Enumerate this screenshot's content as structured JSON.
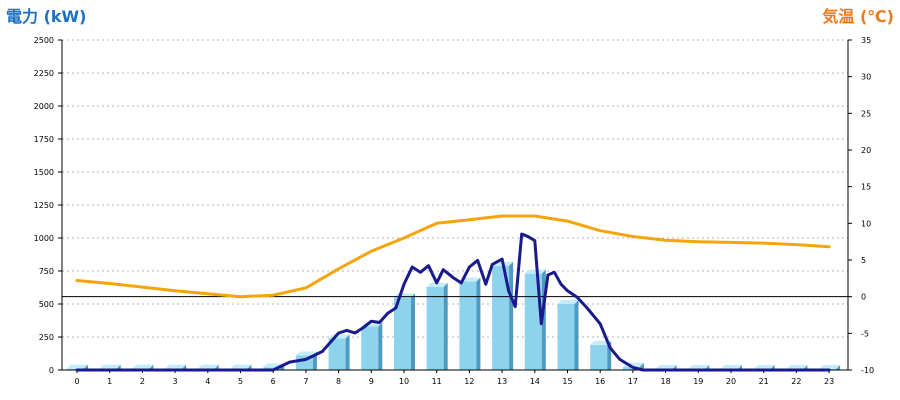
{
  "chart_data": {
    "type": "bar+line",
    "left_axis_title": "電力 (kW)",
    "right_axis_title": "気温 (℃)",
    "x_ticks": [
      "0",
      "1",
      "2",
      "3",
      "4",
      "5",
      "6",
      "7",
      "8",
      "9",
      "10",
      "11",
      "12",
      "13",
      "14",
      "15",
      "16",
      "17",
      "18",
      "19",
      "20",
      "21",
      "22",
      "23"
    ],
    "y_left_ticks": [
      "0",
      "250",
      "500",
      "750",
      "1000",
      "1250",
      "1500",
      "1750",
      "2000",
      "2250",
      "2500"
    ],
    "y_right_ticks": [
      "-10",
      "-5",
      "0",
      "5",
      "10",
      "15",
      "20",
      "25",
      "30",
      "35"
    ],
    "y_left_range": [
      0,
      2500
    ],
    "y_right_range": [
      -10,
      35
    ],
    "grid": "horizontal dotted",
    "bars": {
      "hours": [
        0,
        1,
        2,
        3,
        4,
        5,
        6,
        7,
        8,
        9,
        10,
        11,
        12,
        13,
        14,
        15,
        16,
        17,
        18,
        19,
        20,
        21,
        22,
        23
      ],
      "values": [
        10,
        10,
        10,
        10,
        10,
        10,
        20,
        110,
        240,
        330,
        550,
        630,
        670,
        790,
        730,
        500,
        190,
        25,
        5,
        5,
        5,
        5,
        5,
        5
      ]
    },
    "power_line": {
      "points": [
        [
          0,
          0
        ],
        [
          6,
          0
        ],
        [
          6.5,
          60
        ],
        [
          7,
          80
        ],
        [
          7.5,
          140
        ],
        [
          8,
          280
        ],
        [
          8.25,
          300
        ],
        [
          8.5,
          280
        ],
        [
          8.75,
          320
        ],
        [
          9,
          370
        ],
        [
          9.25,
          360
        ],
        [
          9.5,
          430
        ],
        [
          9.75,
          470
        ],
        [
          10,
          650
        ],
        [
          10.25,
          780
        ],
        [
          10.5,
          740
        ],
        [
          10.75,
          790
        ],
        [
          11,
          660
        ],
        [
          11.2,
          760
        ],
        [
          11.5,
          700
        ],
        [
          11.75,
          660
        ],
        [
          12,
          780
        ],
        [
          12.25,
          830
        ],
        [
          12.5,
          650
        ],
        [
          12.7,
          800
        ],
        [
          13,
          840
        ],
        [
          13.2,
          600
        ],
        [
          13.4,
          480
        ],
        [
          13.6,
          1030
        ],
        [
          13.8,
          1010
        ],
        [
          14,
          980
        ],
        [
          14.2,
          350
        ],
        [
          14.4,
          720
        ],
        [
          14.6,
          740
        ],
        [
          14.8,
          650
        ],
        [
          15,
          600
        ],
        [
          15.3,
          550
        ],
        [
          15.6,
          470
        ],
        [
          16,
          350
        ],
        [
          16.3,
          170
        ],
        [
          16.6,
          80
        ],
        [
          17,
          20
        ],
        [
          17.3,
          0
        ],
        [
          23,
          0
        ]
      ]
    },
    "temperature_line": {
      "points": [
        [
          0,
          2.2
        ],
        [
          1,
          1.8
        ],
        [
          2,
          1.3
        ],
        [
          3,
          0.8
        ],
        [
          4,
          0.4
        ],
        [
          5,
          0
        ],
        [
          6,
          0.2
        ],
        [
          7,
          1.2
        ],
        [
          8,
          3.8
        ],
        [
          9,
          6.2
        ],
        [
          10,
          8
        ],
        [
          11,
          10
        ],
        [
          12,
          10.5
        ],
        [
          13,
          11
        ],
        [
          14,
          11
        ],
        [
          15,
          10.3
        ],
        [
          16,
          9
        ],
        [
          17,
          8.2
        ],
        [
          18,
          7.7
        ],
        [
          19,
          7.5
        ],
        [
          20,
          7.4
        ],
        [
          21,
          7.3
        ],
        [
          22,
          7.1
        ],
        [
          23,
          6.8
        ]
      ]
    },
    "colors": {
      "bar_front": "#8ed3ee",
      "bar_side": "#4f9bc0",
      "bar_top": "#c5ecf9",
      "power_line": "#1a1a8c",
      "temperature_line": "#f5a40a",
      "left_title": "#1b72c4",
      "right_title": "#ee7a1c"
    }
  }
}
